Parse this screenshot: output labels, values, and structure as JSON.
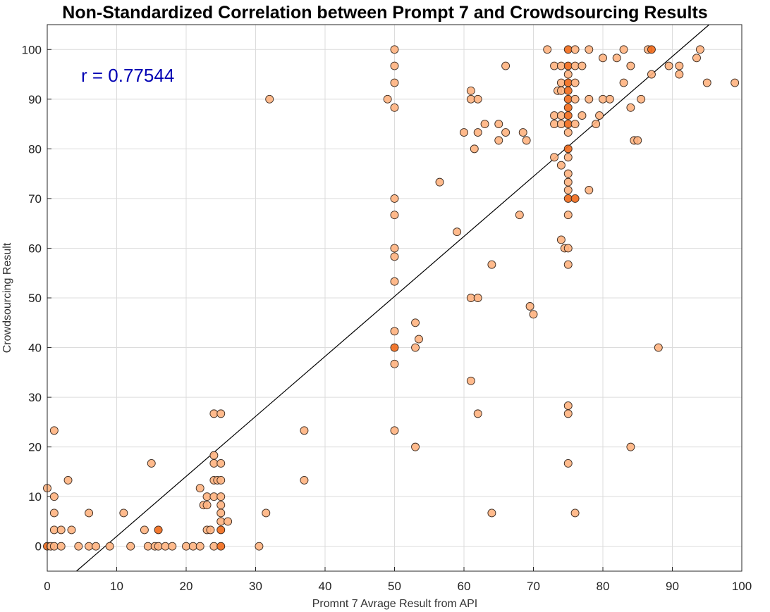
{
  "chart_data": {
    "type": "scatter",
    "title": "Non-Standardized Correlation between Prompt 7 and Crowdsourcing Results",
    "xlabel": "Promnt 7 Avrage Result from API",
    "ylabel": "Crowdsourcing Result",
    "annotation": "r = 0.77544",
    "xlim": [
      0,
      100
    ],
    "ylim": [
      -5,
      105
    ],
    "xticks": [
      0,
      10,
      20,
      30,
      40,
      50,
      60,
      70,
      80,
      90,
      100
    ],
    "yticks": [
      0,
      10,
      20,
      30,
      40,
      50,
      60,
      70,
      80,
      90,
      100
    ],
    "grid": true,
    "marker_color": "#ffb380",
    "overlap_color": "#f26a1a",
    "fit_line_color": "#000000",
    "fit_line": [
      [
        4.2,
        -5
      ],
      [
        95.3,
        105
      ]
    ],
    "points": [
      [
        0,
        0
      ],
      [
        0,
        11.7
      ],
      [
        0.5,
        0
      ],
      [
        1,
        0
      ],
      [
        1,
        3.3
      ],
      [
        1,
        6.7
      ],
      [
        1,
        10
      ],
      [
        1,
        23.3
      ],
      [
        2,
        0
      ],
      [
        2,
        3.3
      ],
      [
        3,
        13.3
      ],
      [
        3.5,
        3.3
      ],
      [
        4.5,
        0
      ],
      [
        6,
        0
      ],
      [
        6,
        6.7
      ],
      [
        7,
        0
      ],
      [
        9,
        0
      ],
      [
        11,
        6.7
      ],
      [
        12,
        0
      ],
      [
        14,
        3.3
      ],
      [
        14.5,
        0
      ],
      [
        15,
        16.7
      ],
      [
        15.5,
        0
      ],
      [
        16,
        0
      ],
      [
        16,
        3.3
      ],
      [
        17,
        0
      ],
      [
        18,
        0
      ],
      [
        20,
        0
      ],
      [
        21,
        0
      ],
      [
        22,
        0
      ],
      [
        22,
        11.7
      ],
      [
        22.5,
        8.3
      ],
      [
        23,
        8.3
      ],
      [
        23,
        10
      ],
      [
        23,
        3.3
      ],
      [
        23.5,
        3.3
      ],
      [
        24,
        0
      ],
      [
        24,
        10
      ],
      [
        24,
        13.3
      ],
      [
        24,
        16.7
      ],
      [
        24,
        18.3
      ],
      [
        24,
        26.7
      ],
      [
        24.5,
        13.3
      ],
      [
        25,
        0
      ],
      [
        25,
        3.3
      ],
      [
        25,
        5
      ],
      [
        25,
        6.7
      ],
      [
        25,
        8.3
      ],
      [
        25,
        10
      ],
      [
        25,
        13.3
      ],
      [
        25,
        16.7
      ],
      [
        25,
        26.7
      ],
      [
        26,
        5
      ],
      [
        30.5,
        0
      ],
      [
        31.5,
        6.7
      ],
      [
        32,
        90
      ],
      [
        37,
        13.3
      ],
      [
        37,
        23.3
      ],
      [
        49,
        90
      ],
      [
        50,
        100
      ],
      [
        50,
        96.7
      ],
      [
        50,
        93.3
      ],
      [
        50,
        88.3
      ],
      [
        50,
        70
      ],
      [
        50,
        66.7
      ],
      [
        50,
        60
      ],
      [
        50,
        58.3
      ],
      [
        50,
        53.3
      ],
      [
        50,
        43.3
      ],
      [
        50,
        40
      ],
      [
        50,
        36.7
      ],
      [
        50,
        23.3
      ],
      [
        53,
        45
      ],
      [
        53,
        40
      ],
      [
        53.5,
        41.7
      ],
      [
        53,
        20
      ],
      [
        56.5,
        73.3
      ],
      [
        59,
        63.3
      ],
      [
        60,
        83.3
      ],
      [
        61,
        91.7
      ],
      [
        61,
        90
      ],
      [
        61.5,
        80
      ],
      [
        62,
        90
      ],
      [
        62,
        83.3
      ],
      [
        61,
        50
      ],
      [
        62,
        50
      ],
      [
        61,
        33.3
      ],
      [
        62,
        26.7
      ],
      [
        63,
        85
      ],
      [
        64,
        56.7
      ],
      [
        64,
        6.7
      ],
      [
        65,
        85
      ],
      [
        65,
        81.7
      ],
      [
        66,
        96.7
      ],
      [
        66,
        83.3
      ],
      [
        68,
        66.7
      ],
      [
        68.5,
        83.3
      ],
      [
        69,
        81.7
      ],
      [
        69.5,
        48.3
      ],
      [
        70,
        46.7
      ],
      [
        72,
        100
      ],
      [
        73,
        96.7
      ],
      [
        73,
        86.7
      ],
      [
        73,
        85
      ],
      [
        73,
        78.3
      ],
      [
        73.5,
        91.7
      ],
      [
        74,
        96.7
      ],
      [
        74,
        93.3
      ],
      [
        74,
        91.7
      ],
      [
        74,
        86.7
      ],
      [
        74,
        85
      ],
      [
        74,
        76.7
      ],
      [
        74,
        61.7
      ],
      [
        74.5,
        60
      ],
      [
        75,
        100
      ],
      [
        75,
        96.7
      ],
      [
        75,
        95
      ],
      [
        75,
        93.3
      ],
      [
        75,
        91.7
      ],
      [
        75,
        90
      ],
      [
        75,
        88.3
      ],
      [
        75,
        86.7
      ],
      [
        75,
        85
      ],
      [
        75,
        83.3
      ],
      [
        75,
        80
      ],
      [
        75,
        78.3
      ],
      [
        75,
        75
      ],
      [
        75,
        73.3
      ],
      [
        75,
        71.7
      ],
      [
        75,
        70
      ],
      [
        75,
        66.7
      ],
      [
        75,
        60
      ],
      [
        75,
        56.7
      ],
      [
        75,
        28.3
      ],
      [
        75,
        26.7
      ],
      [
        75,
        16.7
      ],
      [
        76,
        100
      ],
      [
        76,
        96.7
      ],
      [
        76,
        93.3
      ],
      [
        76,
        90
      ],
      [
        76,
        85
      ],
      [
        76,
        70
      ],
      [
        76,
        6.7
      ],
      [
        77,
        96.7
      ],
      [
        77,
        86.7
      ],
      [
        78,
        100
      ],
      [
        78,
        90
      ],
      [
        78,
        71.7
      ],
      [
        79,
        85
      ],
      [
        79.5,
        86.7
      ],
      [
        80,
        98.3
      ],
      [
        80,
        90
      ],
      [
        81,
        90
      ],
      [
        82,
        98.3
      ],
      [
        83,
        100
      ],
      [
        83,
        93.3
      ],
      [
        84,
        96.7
      ],
      [
        84,
        88.3
      ],
      [
        84,
        20
      ],
      [
        84.5,
        81.7
      ],
      [
        85,
        81.7
      ],
      [
        85.5,
        90
      ],
      [
        86.5,
        100
      ],
      [
        87,
        100
      ],
      [
        87,
        95
      ],
      [
        88,
        40
      ],
      [
        89.5,
        96.7
      ],
      [
        91,
        96.7
      ],
      [
        91,
        95
      ],
      [
        93.5,
        98.3
      ],
      [
        94,
        100
      ],
      [
        95,
        93.3
      ],
      [
        99,
        93.3
      ]
    ]
  }
}
